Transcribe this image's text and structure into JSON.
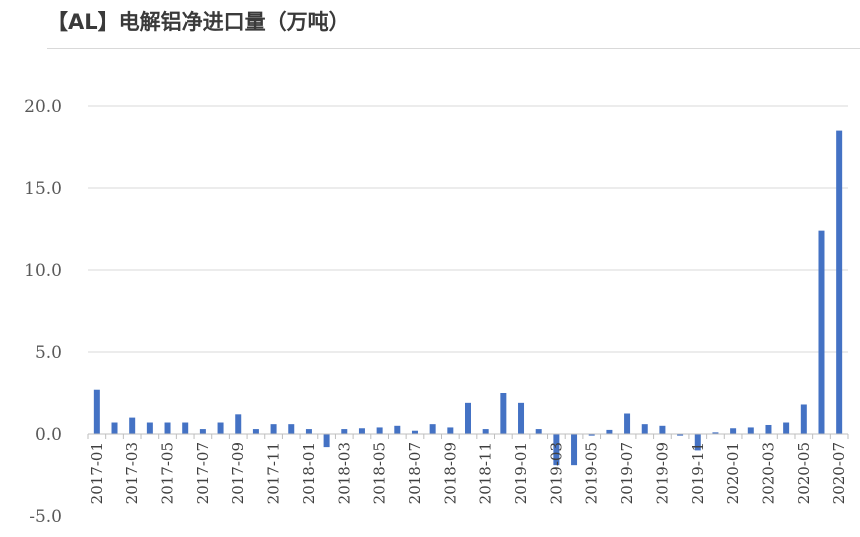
{
  "title": "【AL】电解铝净进口量（万吨）",
  "chart_data": {
    "type": "bar",
    "title": "【AL】电解铝净进口量（万吨）",
    "ylim": [
      -5,
      20
    ],
    "yticks": [
      "20.0",
      "15.0",
      "10.0",
      "5.0",
      "0.0",
      "-5.0"
    ],
    "ytick_values": [
      20,
      15,
      10,
      5,
      0,
      -5
    ],
    "grid": true,
    "bar_color": "#4472c4",
    "categories": [
      "2017-01",
      "2017-02",
      "2017-03",
      "2017-04",
      "2017-05",
      "2017-06",
      "2017-07",
      "2017-08",
      "2017-09",
      "2017-10",
      "2017-11",
      "2017-12",
      "2018-01",
      "2018-02",
      "2018-03",
      "2018-04",
      "2018-05",
      "2018-06",
      "2018-07",
      "2018-08",
      "2018-09",
      "2018-10",
      "2018-11",
      "2018-12",
      "2019-01",
      "2019-02",
      "2019-03",
      "2019-04",
      "2019-05",
      "2019-06",
      "2019-07",
      "2019-08",
      "2019-09",
      "2019-10",
      "2019-11",
      "2019-12",
      "2020-01",
      "2020-02",
      "2020-03",
      "2020-04",
      "2020-05",
      "2020-06",
      "2020-07"
    ],
    "xtick_labels": [
      "2017-01",
      "2017-03",
      "2017-05",
      "2017-07",
      "2017-09",
      "2017-11",
      "2018-01",
      "2018-03",
      "2018-05",
      "2018-07",
      "2018-09",
      "2018-11",
      "2019-01",
      "2019-03",
      "2019-05",
      "2019-07",
      "2019-09",
      "2019-11",
      "2020-01",
      "2020-03",
      "2020-05",
      "2020-07"
    ],
    "values": [
      2.7,
      0.7,
      1.0,
      0.7,
      0.7,
      0.7,
      0.3,
      0.7,
      1.2,
      0.3,
      0.6,
      0.6,
      0.3,
      -0.8,
      0.3,
      0.35,
      0.4,
      0.5,
      0.2,
      0.6,
      0.4,
      1.9,
      0.3,
      2.5,
      1.9,
      0.3,
      -1.9,
      -1.9,
      -0.1,
      0.25,
      1.25,
      0.6,
      0.5,
      -0.1,
      -1.0,
      0.1,
      0.35,
      0.4,
      0.55,
      0.7,
      1.8,
      12.4,
      18.5
    ]
  }
}
